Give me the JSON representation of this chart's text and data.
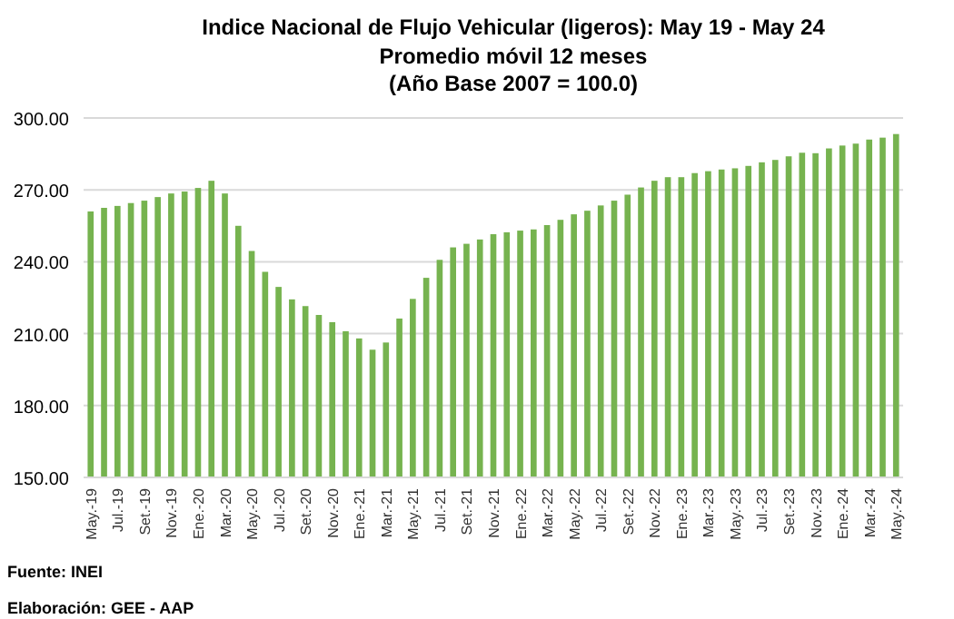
{
  "chart_data": {
    "type": "bar",
    "title": "Indice Nacional  de Flujo Vehicular (ligeros): May 19 - May 24",
    "subtitle": "Promedio móvil 12 meses\n(Año Base 2007 = 100.0)",
    "categories": [
      "May.-19",
      null,
      "Jul.-19",
      null,
      "Set.-19",
      null,
      "Nov.-19",
      null,
      "Ene.-20",
      null,
      "Mar.-20",
      null,
      "May.-20",
      null,
      "Jul.-20",
      null,
      "Set.-20",
      null,
      "Nov.-20",
      null,
      "Ene.-21",
      null,
      "Mar.-21",
      null,
      "May.-21",
      null,
      "Jul.-21",
      null,
      "Set.-21",
      null,
      "Nov.-21",
      null,
      "Ene.-22",
      null,
      "Mar.-22",
      null,
      "May.-22",
      null,
      "Jul.-22",
      null,
      "Set.-22",
      null,
      "Nov.-22",
      null,
      "Ene.-23",
      null,
      "Mar.-23",
      null,
      "May.-23",
      null,
      "Jul.-23",
      null,
      "Set.-23",
      null,
      "Nov.-23",
      null,
      "Ene.-24",
      null,
      "Mar.-24",
      null,
      "May.-24"
    ],
    "values": [
      261,
      262.5,
      263.3,
      264.5,
      265.5,
      267,
      268.5,
      269.3,
      270.8,
      273.8,
      268.5,
      255,
      244.5,
      235.8,
      229.5,
      224.3,
      221.5,
      217.8,
      214.8,
      211,
      208,
      203.3,
      206.3,
      216.3,
      224.5,
      233.3,
      240.8,
      246,
      247.5,
      249.3,
      251.5,
      252.3,
      253,
      253.5,
      255.3,
      257.5,
      259.8,
      261.3,
      263.5,
      265.5,
      268,
      271,
      273.8,
      275.3,
      275.3,
      277,
      277.8,
      278.5,
      279,
      280,
      281.5,
      282.5,
      284,
      285.5,
      285.3,
      287.3,
      288.5,
      289.3,
      291,
      291.8,
      293.3
    ],
    "color": "#76b34f",
    "ylim": [
      150,
      300
    ],
    "yticks": [
      {
        "value": 150,
        "label": "150.00"
      },
      {
        "value": 180,
        "label": "180.00"
      },
      {
        "value": 210,
        "label": "210.00"
      },
      {
        "value": 240,
        "label": "240.00"
      },
      {
        "value": 270,
        "label": "270.00"
      },
      {
        "value": 300,
        "label": "300.00"
      }
    ],
    "grid": "y",
    "legend": false,
    "annotations": [
      "Fuente: INEI",
      "Elaboración: GEE - AAP"
    ]
  }
}
